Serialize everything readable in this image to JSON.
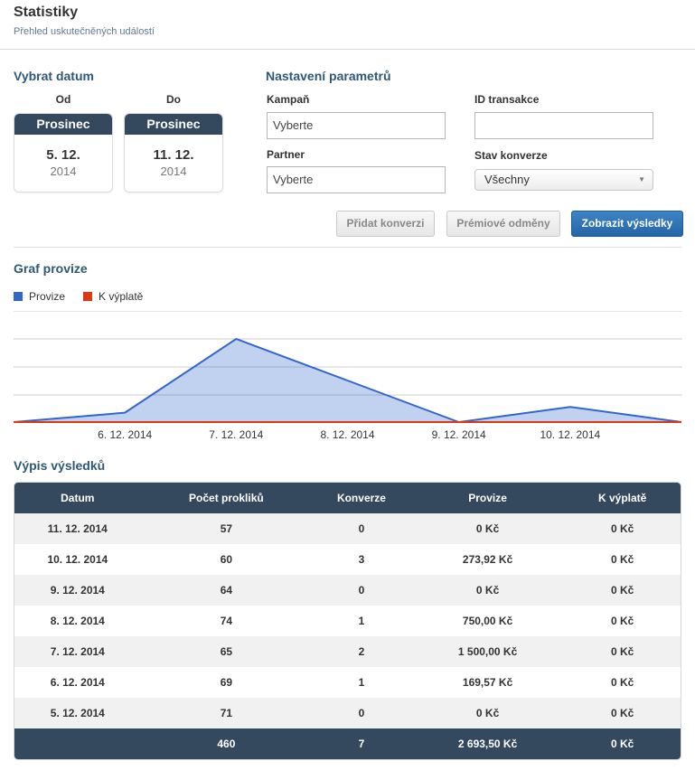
{
  "header": {
    "title": "Statistiky",
    "subtitle": "Přehled uskutečněných událostí"
  },
  "date_section": {
    "title": "Vybrat datum",
    "from": {
      "label": "Od",
      "month": "Prosinec",
      "day": "5. 12.",
      "year": "2014"
    },
    "to": {
      "label": "Do",
      "month": "Prosinec",
      "day": "11. 12.",
      "year": "2014"
    }
  },
  "params": {
    "title": "Nastavení parametrů",
    "campaign": {
      "label": "Kampaň",
      "value": "Vyberte"
    },
    "transaction_id": {
      "label": "ID transakce",
      "value": ""
    },
    "partner": {
      "label": "Partner",
      "value": "Vyberte"
    },
    "conversion_state": {
      "label": "Stav konverze",
      "value": "Všechny"
    }
  },
  "buttons": {
    "add_conversion": "Přidat konverzi",
    "premium_rewards": "Prémiové odměny",
    "show_results": "Zobrazit výsledky"
  },
  "chart_section": {
    "title": "Graf provize",
    "legend": [
      {
        "label": "Provize",
        "color": "#3366cc"
      },
      {
        "label": "K výplatě",
        "color": "#dc3912"
      }
    ]
  },
  "chart_data": {
    "type": "area",
    "x": [
      "5. 12. 2014",
      "6. 12. 2014",
      "7. 12. 2014",
      "8. 12. 2014",
      "9. 12. 2014",
      "10. 12. 2014",
      "11. 12. 2014"
    ],
    "tick_labels": [
      "6. 12. 2014",
      "7. 12. 2014",
      "8. 12. 2014",
      "9. 12. 2014",
      "10. 12. 2014"
    ],
    "series": [
      {
        "name": "Provize",
        "values": [
          0,
          169.57,
          1500.0,
          750.0,
          0,
          273.92,
          0
        ],
        "color": "#3366cc"
      },
      {
        "name": "K výplatě",
        "values": [
          0,
          0,
          0,
          0,
          0,
          0,
          0
        ],
        "color": "#dc3912"
      }
    ],
    "ylim": [
      0,
      1500
    ],
    "grid": true,
    "legend": "top-left"
  },
  "results": {
    "title": "Výpis výsledků",
    "columns": [
      "Datum",
      "Počet prokliků",
      "Konverze",
      "Provize",
      "K výplatě"
    ],
    "rows": [
      [
        "11. 12. 2014",
        "57",
        "0",
        "0 Kč",
        "0 Kč"
      ],
      [
        "10. 12. 2014",
        "60",
        "3",
        "273,92 Kč",
        "0 Kč"
      ],
      [
        "9. 12. 2014",
        "64",
        "0",
        "0 Kč",
        "0 Kč"
      ],
      [
        "8. 12. 2014",
        "74",
        "1",
        "750,00 Kč",
        "0 Kč"
      ],
      [
        "7. 12. 2014",
        "65",
        "2",
        "1 500,00 Kč",
        "0 Kč"
      ],
      [
        "6. 12. 2014",
        "69",
        "1",
        "169,57 Kč",
        "0 Kč"
      ],
      [
        "5. 12. 2014",
        "71",
        "0",
        "0 Kč",
        "0 Kč"
      ]
    ],
    "totals": [
      "",
      "460",
      "7",
      "2 693,50 Kč",
      "0 Kč"
    ]
  }
}
